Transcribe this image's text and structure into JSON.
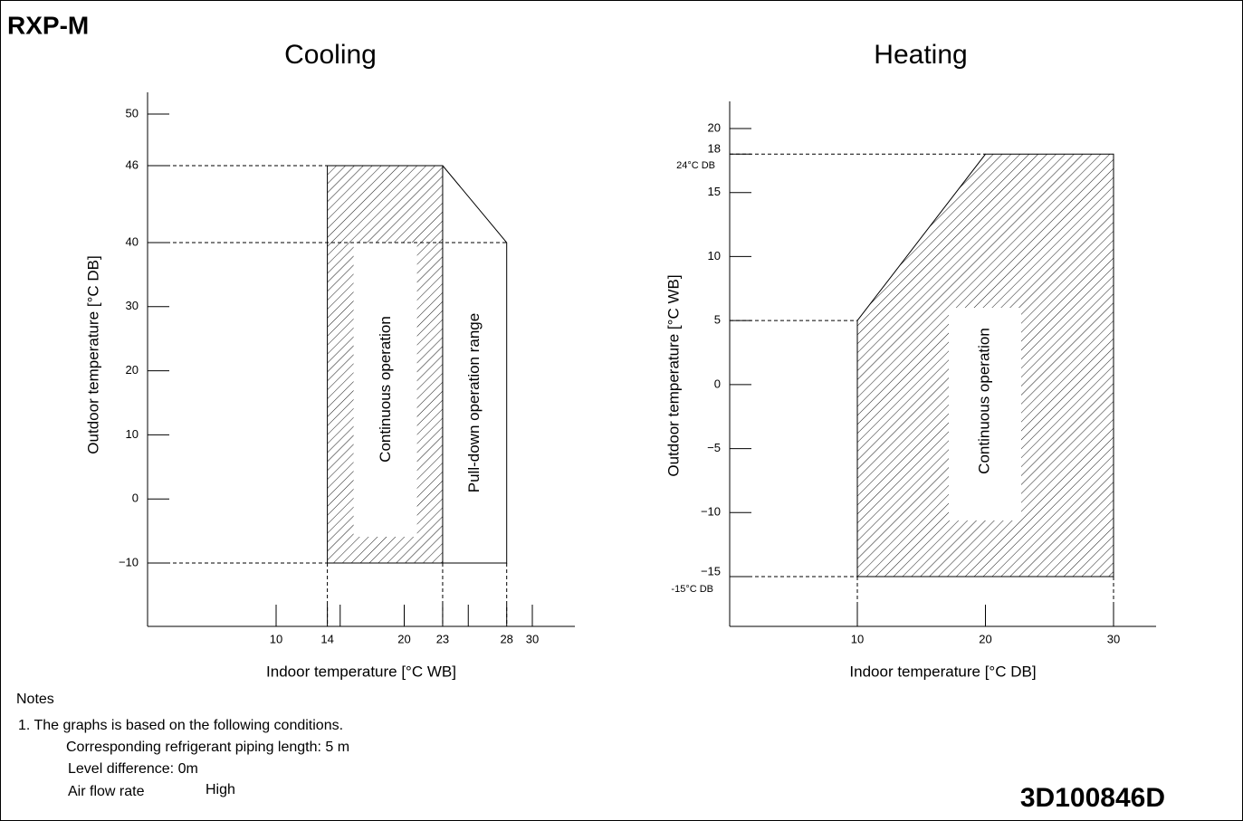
{
  "header": {
    "title": "RXP-M"
  },
  "charts": [
    {
      "title": "Cooling",
      "x_label": "Indoor temperature [°C WB]",
      "y_label": "Outdoor temperature [°C DB]",
      "xticks": [
        10,
        14,
        20,
        23,
        28,
        30
      ],
      "yticks": [
        {
          "value": -10,
          "label": "−10"
        },
        0,
        10,
        20,
        30,
        40,
        46,
        50
      ],
      "continuous": {
        "label": "Continuous operation",
        "x": [
          14,
          23
        ],
        "y": [
          -10,
          46
        ]
      },
      "pulldown": {
        "label": "Pull-down operation range",
        "x": [
          23,
          28
        ],
        "y": [
          -10,
          40
        ]
      }
    },
    {
      "title": "Heating",
      "x_label": "Indoor temperature [°C DB]",
      "y_label": "Outdoor temperature [°C WB]",
      "xticks": [
        10,
        20,
        30
      ],
      "yticks": [
        {
          "value": -15,
          "label": "−15"
        },
        {
          "value": -10,
          "label": "−10"
        },
        {
          "value": -5,
          "label": "−5"
        },
        0,
        5,
        10,
        15,
        18,
        20
      ],
      "annotations": [
        "24°C DB",
        "-15°C DB"
      ],
      "continuous": {
        "label": "Continuous operation",
        "x": [
          10,
          20,
          30
        ],
        "y": [
          -15,
          5,
          18
        ]
      }
    }
  ],
  "notes": {
    "title": "Notes",
    "lines": [
      "1. The graphs is based on the following conditions.",
      "Corresponding refrigerant piping length: 5 m",
      "Level difference: 0m",
      "Air flow rate",
      "High"
    ]
  },
  "code": "3D100846D"
}
